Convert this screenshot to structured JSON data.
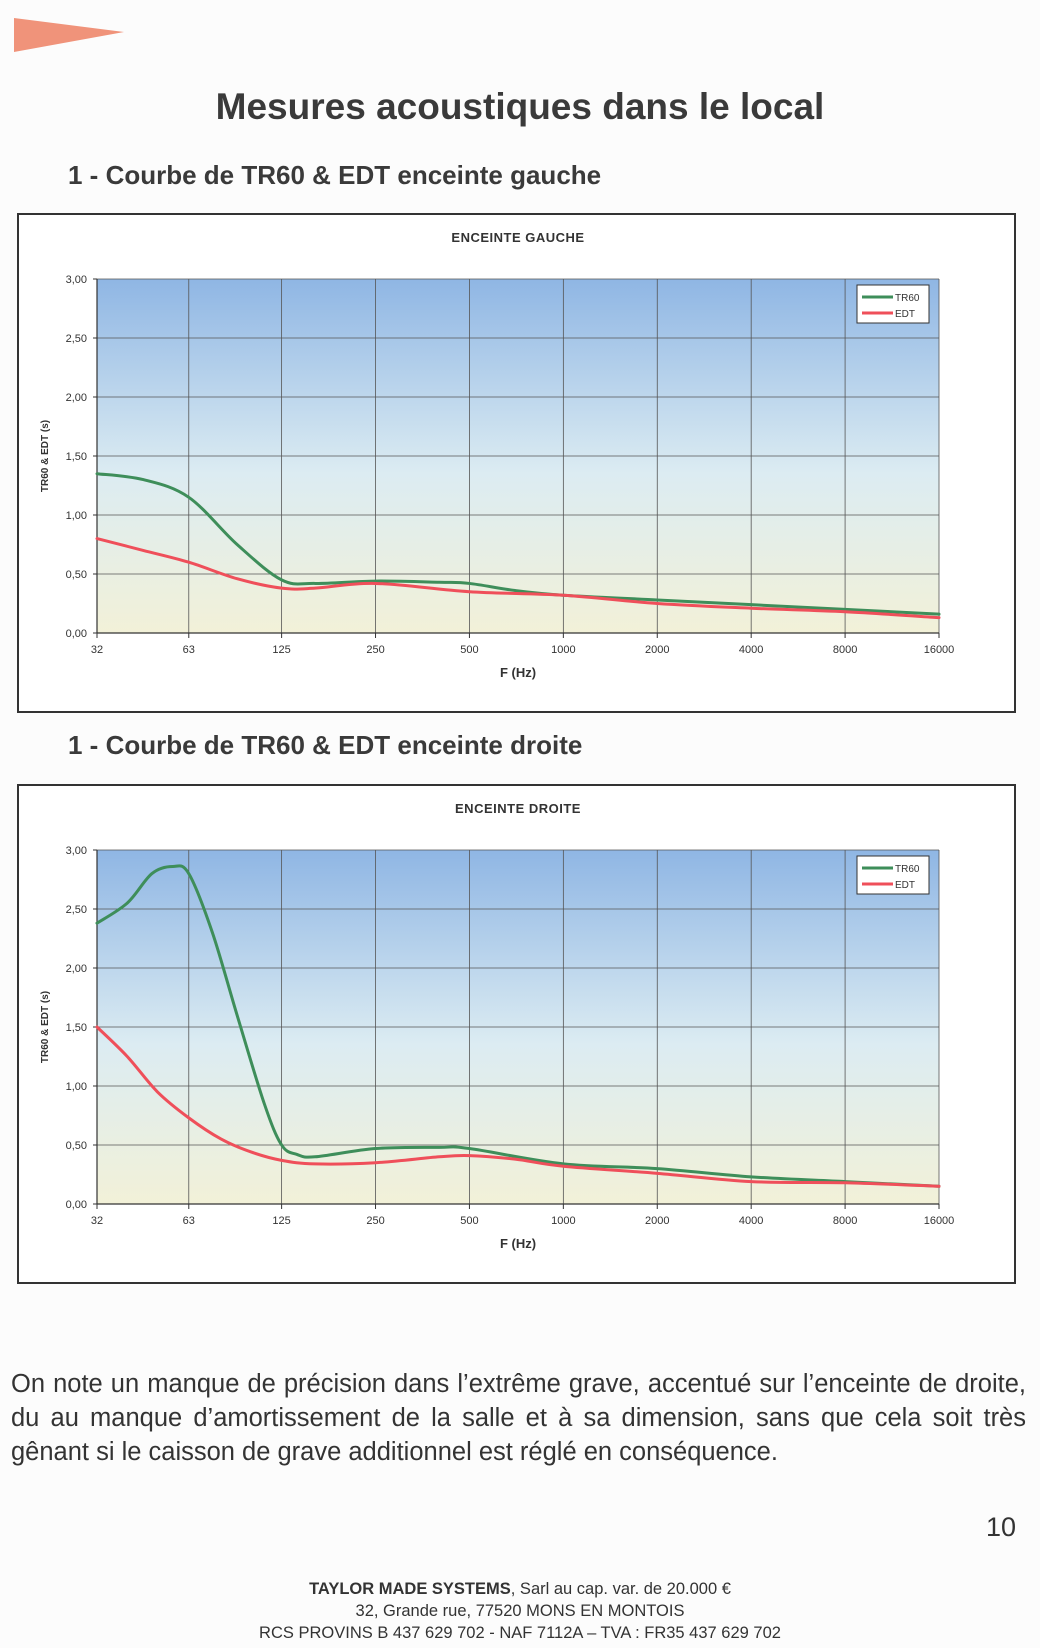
{
  "page": {
    "title": "Mesures acoustiques dans le local",
    "section1": "1 - Courbe de TR60 & EDT enceinte gauche",
    "section2": "1 - Courbe de TR60 & EDT enceinte droite",
    "paragraph": "On note un manque de précision dans l’extrême grave, accentué sur l’enceinte de droite, du au manque d’amortissement de la salle et à sa dimension, sans que cela soit très gênant si le caisson de grave additionnel est réglé en conséquence.",
    "page_number": "10",
    "footer": {
      "company": "TAYLOR MADE SYSTEMS",
      "line1_rest": ", Sarl au cap. var. de 20.000 €",
      "line2": "32, Grande rue, 77520 MONS EN MONTOIS",
      "line3": "RCS PROVINS B 437 629 702 - NAF 7112A – TVA : FR35 437 629 702"
    },
    "colors": {
      "arrow": "#f0937a",
      "tr60": "#3e8e5a",
      "edt": "#ef4f5a"
    }
  },
  "chart_data": [
    {
      "type": "line",
      "title": "ENCEINTE GAUCHE",
      "xlabel": "F (Hz)",
      "ylabel": "TR60 & EDT (s)",
      "x_scale": "log2",
      "x": [
        32,
        63,
        125,
        250,
        500,
        1000,
        2000,
        4000,
        8000,
        16000
      ],
      "x_tick_labels": [
        "32",
        "63",
        "125",
        "250",
        "500",
        "1000",
        "2000",
        "4000",
        "8000",
        "16000"
      ],
      "ylim": [
        0,
        3
      ],
      "y_ticks": [
        0,
        0.5,
        1,
        1.5,
        2,
        2.5,
        3
      ],
      "y_tick_labels": [
        "0,00",
        "0,50",
        "1,00",
        "1,50",
        "2,00",
        "2,50",
        "3,00"
      ],
      "grid": true,
      "legend": "top-right",
      "series": [
        {
          "name": "TR60",
          "color": "#3e8e5a",
          "points": [
            [
              32,
              1.35
            ],
            [
              45,
              1.3
            ],
            [
              63,
              1.15
            ],
            [
              90,
              0.75
            ],
            [
              125,
              0.45
            ],
            [
              160,
              0.42
            ],
            [
              250,
              0.44
            ],
            [
              400,
              0.43
            ],
            [
              500,
              0.42
            ],
            [
              700,
              0.36
            ],
            [
              1000,
              0.32
            ],
            [
              2000,
              0.28
            ],
            [
              4000,
              0.24
            ],
            [
              8000,
              0.2
            ],
            [
              16000,
              0.16
            ]
          ]
        },
        {
          "name": "EDT",
          "color": "#ef4f5a",
          "points": [
            [
              32,
              0.8
            ],
            [
              45,
              0.7
            ],
            [
              63,
              0.6
            ],
            [
              90,
              0.46
            ],
            [
              125,
              0.38
            ],
            [
              160,
              0.38
            ],
            [
              250,
              0.42
            ],
            [
              500,
              0.35
            ],
            [
              1000,
              0.32
            ],
            [
              2000,
              0.25
            ],
            [
              4000,
              0.21
            ],
            [
              8000,
              0.18
            ],
            [
              16000,
              0.13
            ]
          ]
        }
      ]
    },
    {
      "type": "line",
      "title": "ENCEINTE DROITE",
      "xlabel": "F (Hz)",
      "ylabel": "TR60 & EDT (s)",
      "x_scale": "log2",
      "x": [
        32,
        63,
        125,
        250,
        500,
        1000,
        2000,
        4000,
        8000,
        16000
      ],
      "x_tick_labels": [
        "32",
        "63",
        "125",
        "250",
        "500",
        "1000",
        "2000",
        "4000",
        "8000",
        "16000"
      ],
      "ylim": [
        0,
        3
      ],
      "y_ticks": [
        0,
        0.5,
        1,
        1.5,
        2,
        2.5,
        3
      ],
      "y_tick_labels": [
        "0,00",
        "0,50",
        "1,00",
        "1,50",
        "2,00",
        "2,50",
        "3,00"
      ],
      "grid": true,
      "legend": "top-right",
      "series": [
        {
          "name": "TR60",
          "color": "#3e8e5a",
          "points": [
            [
              32,
              2.38
            ],
            [
              40,
              2.55
            ],
            [
              48,
              2.8
            ],
            [
              56,
              2.86
            ],
            [
              63,
              2.8
            ],
            [
              75,
              2.3
            ],
            [
              90,
              1.6
            ],
            [
              110,
              0.85
            ],
            [
              125,
              0.5
            ],
            [
              140,
              0.42
            ],
            [
              160,
              0.4
            ],
            [
              250,
              0.47
            ],
            [
              400,
              0.48
            ],
            [
              500,
              0.47
            ],
            [
              1000,
              0.34
            ],
            [
              2000,
              0.3
            ],
            [
              4000,
              0.23
            ],
            [
              8000,
              0.19
            ],
            [
              16000,
              0.15
            ]
          ]
        },
        {
          "name": "EDT",
          "color": "#ef4f5a",
          "points": [
            [
              32,
              1.5
            ],
            [
              40,
              1.25
            ],
            [
              50,
              0.95
            ],
            [
              63,
              0.73
            ],
            [
              80,
              0.55
            ],
            [
              100,
              0.44
            ],
            [
              125,
              0.37
            ],
            [
              160,
              0.34
            ],
            [
              250,
              0.35
            ],
            [
              400,
              0.4
            ],
            [
              500,
              0.41
            ],
            [
              700,
              0.38
            ],
            [
              1000,
              0.32
            ],
            [
              2000,
              0.26
            ],
            [
              4000,
              0.19
            ],
            [
              8000,
              0.18
            ],
            [
              16000,
              0.15
            ]
          ]
        }
      ]
    }
  ]
}
